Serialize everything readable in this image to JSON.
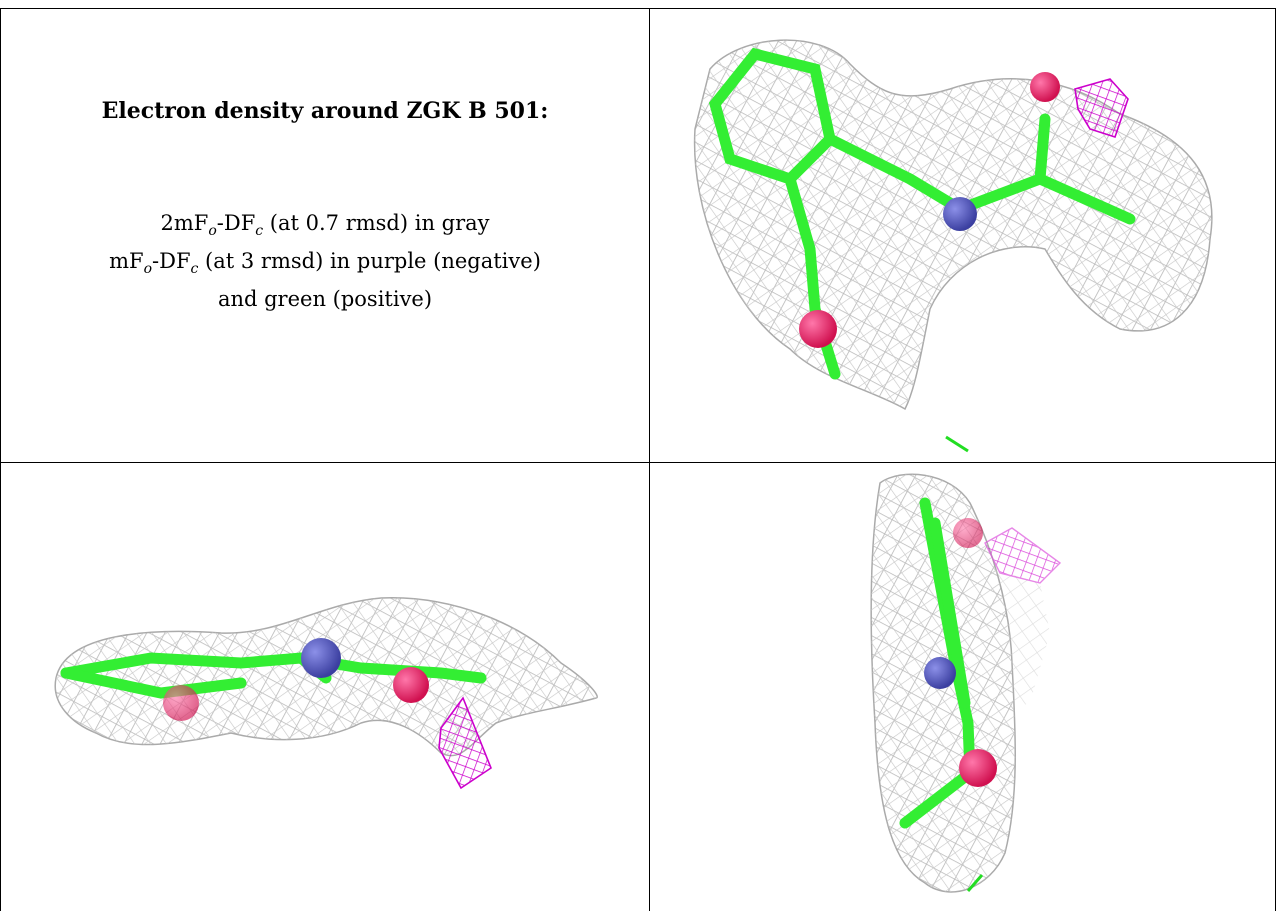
{
  "title": "Electron density around ZGK B 501:",
  "legend": {
    "line1_prefix": "2mF",
    "line1_o": "o",
    "line1_mid": "-DF",
    "line1_c": "c",
    "line1_suffix": " (at 0.7 rmsd) in gray",
    "line2_prefix": "mF",
    "line2_o": "o",
    "line2_mid": "-DF",
    "line2_c": "c",
    "line2_suffix": " (at 3 rmsd) in purple (negative)",
    "line3": "and green (positive)"
  },
  "colors": {
    "mesh_2fofc": "#b8b8b8",
    "mesh_negative": "#cc00cc",
    "mesh_positive": "#00cc00",
    "carbon": "#33ee33",
    "nitrogen": "#5a5fc8",
    "oxygen": "#ee1f6a"
  }
}
